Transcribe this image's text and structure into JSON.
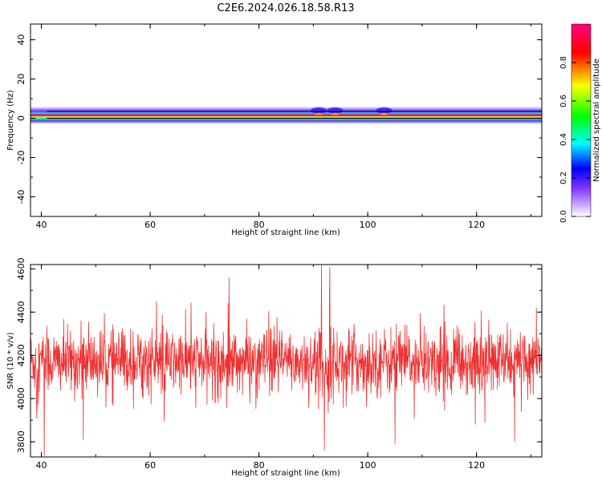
{
  "title": "C2E6.2024.026.18.58.R13",
  "chart_data": [
    {
      "type": "heatmap",
      "xlabel": "Height of straight line (km)",
      "ylabel": "Frequency (Hz)",
      "xlim": [
        38,
        132
      ],
      "ylim": [
        -50,
        48
      ],
      "xticks": [
        40,
        60,
        80,
        100,
        120
      ],
      "yticks": [
        40,
        20,
        0,
        -20,
        -40
      ],
      "colorbar": {
        "label": "Normalized spectral amplitude",
        "range": [
          0.0,
          1.0
        ],
        "ticks": [
          0.0,
          0.2,
          0.4,
          0.6,
          0.8
        ],
        "tick_labels": [
          "0.0",
          "0.2",
          "0.4",
          "0.6",
          "0.8"
        ],
        "colors": [
          "#ffffff",
          "#9966ff",
          "#0000ff",
          "#00ffff",
          "#00ff00",
          "#ffff00",
          "#ff0000",
          "#ff0080"
        ]
      },
      "band": {
        "center_hz": 1.5,
        "half_width_hz": 2.0,
        "peak_color": "#ff0080",
        "line_color": "#000000"
      },
      "features": [
        {
          "height_km": 91,
          "description_value": 0.5
        },
        {
          "height_km": 94,
          "description_value": 0.4
        },
        {
          "height_km": 103,
          "description_value": 0.45
        }
      ]
    },
    {
      "type": "line",
      "xlabel": "Height of straight line (km)",
      "ylabel": "SNR (10 * v/v)",
      "xlim": [
        38,
        132
      ],
      "ylim": [
        3730,
        4620
      ],
      "xticks": [
        40,
        60,
        80,
        100,
        120
      ],
      "yticks": [
        4600,
        4400,
        4200,
        4000,
        3800
      ],
      "series": [
        {
          "color": "#f03030",
          "mean": 4170,
          "noise_std": 75,
          "x_start": 38,
          "x_end": 132,
          "count": 1600,
          "spikes": [
            {
              "x": 91.5,
              "y": 4620
            },
            {
              "x": 92,
              "y": 3760
            },
            {
              "x": 93,
              "y": 4610
            },
            {
              "x": 40.5,
              "y": 3735
            },
            {
              "x": 74.5,
              "y": 4560
            },
            {
              "x": 105,
              "y": 3790
            },
            {
              "x": 127,
              "y": 3800
            }
          ]
        }
      ]
    }
  ]
}
